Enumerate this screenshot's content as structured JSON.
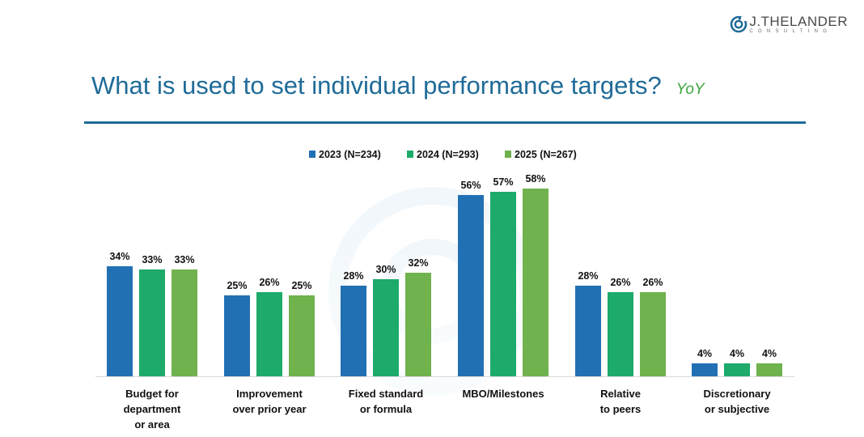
{
  "brand": {
    "name": "J.THELANDER",
    "tagline": "CONSULTING"
  },
  "title": "What is used to set individual performance targets?",
  "tag": "YoY",
  "chart_data": {
    "type": "bar",
    "categories": [
      [
        "Budget for",
        "department",
        "or area"
      ],
      [
        "Improvement",
        "over prior year"
      ],
      [
        "Fixed standard",
        "or formula"
      ],
      [
        "MBO/Milestones"
      ],
      [
        "Relative",
        "to peers"
      ],
      [
        "Discretionary",
        "or subjective"
      ]
    ],
    "series": [
      {
        "name": "2023 (N=234)",
        "color": "#2270b4",
        "values": [
          34,
          25,
          28,
          56,
          28,
          4
        ]
      },
      {
        "name": "2024 (N=293)",
        "color": "#1daa6a",
        "values": [
          33,
          26,
          30,
          57,
          26,
          4
        ]
      },
      {
        "name": "2025 (N=267)",
        "color": "#6fb24e",
        "values": [
          33,
          25,
          32,
          58,
          26,
          4
        ]
      }
    ],
    "value_suffix": "%",
    "ylim": [
      0,
      60
    ],
    "legend": "top",
    "grid": false
  }
}
